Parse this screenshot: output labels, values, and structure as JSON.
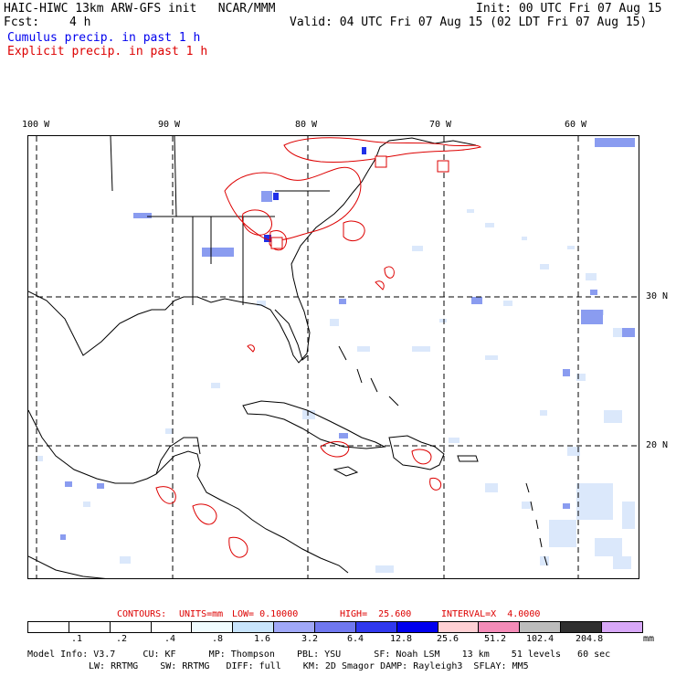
{
  "header": {
    "title_left": "HAIC-HIWC 13km ARW-GFS init   NCAR/MMM",
    "init": "Init: 00 UTC Fri 07 Aug 15",
    "fcst_label": "Fcst:",
    "fcst_value": "4 h",
    "valid": "Valid: 04 UTC Fri 07 Aug 15 (02 LDT Fri 07 Aug 15)",
    "legend_cumulus": "Cumulus precip. in past 1 h",
    "legend_explicit": "Explicit precip. in past 1 h"
  },
  "map": {
    "lon_labels": [
      "100 W",
      "90 W",
      "80 W",
      "70 W",
      "60 W"
    ],
    "lat_labels": [
      "30 N",
      "20 N"
    ],
    "colors": {
      "coast": "#000000",
      "grid": "#000000",
      "contour": "#dd0000",
      "precip_light": "#c8dcf8",
      "precip_mid": "#7890f0"
    }
  },
  "contours": {
    "contours_label": "CONTOURS:",
    "units": "UNITS=mm",
    "low": "LOW= 0.10000",
    "high": "HIGH=  25.600",
    "interval": "INTERVAL=X  4.0000"
  },
  "scale": {
    "colors": [
      "#ffffff",
      "#ffffff",
      "#ffffff",
      "#ffffff",
      "#f0fcff",
      "#c8e4fc",
      "#a0a8f8",
      "#7078f0",
      "#3038ee",
      "#0000ee",
      "#ffd0d4",
      "#f48cb8",
      "#bcbcbc",
      "#303030",
      "#d8a8f8"
    ],
    "ticks": [
      ".1",
      ".2",
      ".4",
      ".8",
      "1.6",
      "3.2",
      "6.4",
      "12.8",
      "25.6",
      "51.2",
      "102.4",
      "204.8"
    ],
    "unit": "mm"
  },
  "model_info": {
    "line1": "Model Info: V3.7     CU: KF      MP: Thompson    PBL: YSU      SF: Noah LSM    13 km    51 levels   60 sec",
    "line2": "LW: RRTMG    SW: RRTMG   DIFF: full    KM: 2D Smagor DAMP: Rayleigh3  SFLAY: MM5"
  }
}
